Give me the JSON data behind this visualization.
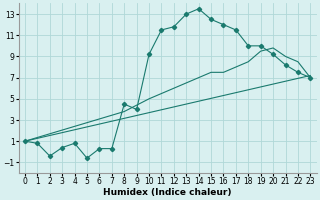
{
  "xlabel": "Humidex (Indice chaleur)",
  "background_color": "#d9f0f0",
  "grid_color": "#b0d8d8",
  "line_color": "#1a7a6e",
  "xlim": [
    -0.5,
    23.5
  ],
  "ylim": [
    -2.0,
    14.0
  ],
  "xticks": [
    0,
    1,
    2,
    3,
    4,
    5,
    6,
    7,
    8,
    9,
    10,
    11,
    12,
    13,
    14,
    15,
    16,
    17,
    18,
    19,
    20,
    21,
    22,
    23
  ],
  "yticks": [
    -1,
    1,
    3,
    5,
    7,
    9,
    11,
    13
  ],
  "line1_x": [
    0,
    1,
    2,
    3,
    4,
    5,
    6,
    7,
    8,
    9,
    10,
    11,
    12,
    13,
    14,
    15,
    16,
    17,
    18,
    19,
    20,
    21,
    22,
    23
  ],
  "line1_y": [
    1.0,
    0.8,
    -0.4,
    0.4,
    0.8,
    -0.6,
    0.3,
    0.3,
    4.5,
    4.0,
    9.2,
    11.5,
    11.8,
    13.0,
    13.5,
    12.5,
    12.0,
    11.5,
    10.0,
    10.0,
    9.2,
    8.2,
    7.5,
    7.0
  ],
  "line2_x": [
    0,
    23
  ],
  "line2_y": [
    1.0,
    7.2
  ],
  "line3_x": [
    0,
    8,
    9,
    10,
    11,
    12,
    13,
    14,
    15,
    16,
    17,
    18,
    19,
    20,
    21,
    22,
    23
  ],
  "line3_y": [
    1.0,
    3.8,
    4.4,
    5.0,
    5.5,
    6.0,
    6.5,
    7.0,
    7.5,
    7.5,
    8.0,
    8.5,
    9.5,
    9.8,
    9.0,
    8.5,
    7.0
  ],
  "fontsize_xlabel": 6.5,
  "fontsize_ticks": 5.5
}
